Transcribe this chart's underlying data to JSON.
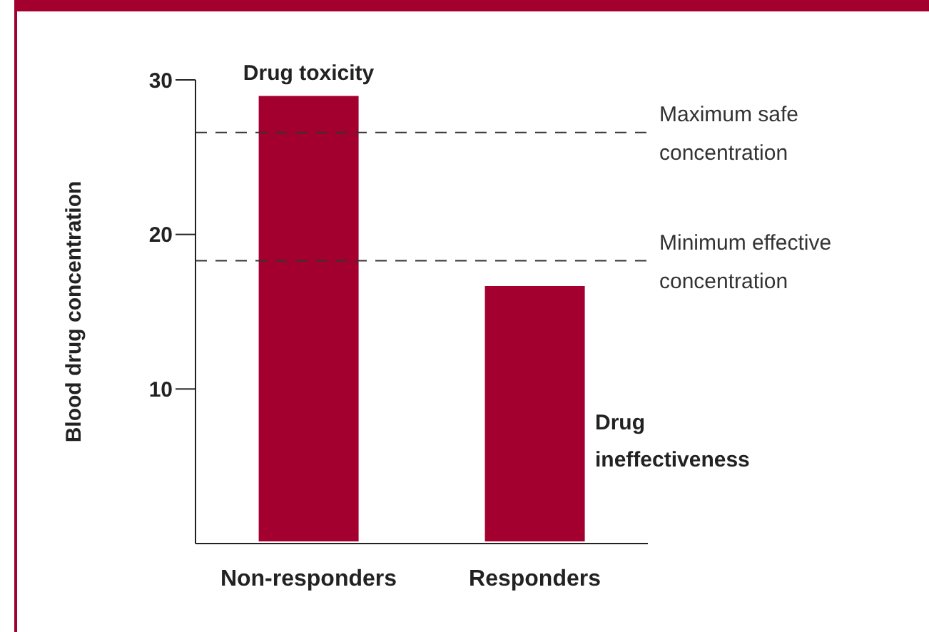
{
  "chart_data": {
    "type": "bar",
    "categories": [
      "Non-responders",
      "Responders"
    ],
    "values": [
      29.1,
      16.8
    ],
    "color": "#a30030",
    "ylabel": "Blood drug concentration",
    "ylim": [
      0,
      30
    ],
    "yticks": [
      10,
      20,
      30
    ],
    "ref_lines": [
      {
        "axis": "y",
        "value": 26.6,
        "label": "Maximum safe concentration",
        "line_style": "dashed",
        "color": "#333333"
      },
      {
        "axis": "y",
        "value": 18.3,
        "label": "Minimum effective concentration",
        "line_style": "dashed",
        "color": "#333333"
      }
    ],
    "annotations": [
      {
        "text": "Drug toxicity",
        "x": "Non-responders",
        "y": 29.1
      },
      "Drug ineffectiveness"
    ]
  }
}
